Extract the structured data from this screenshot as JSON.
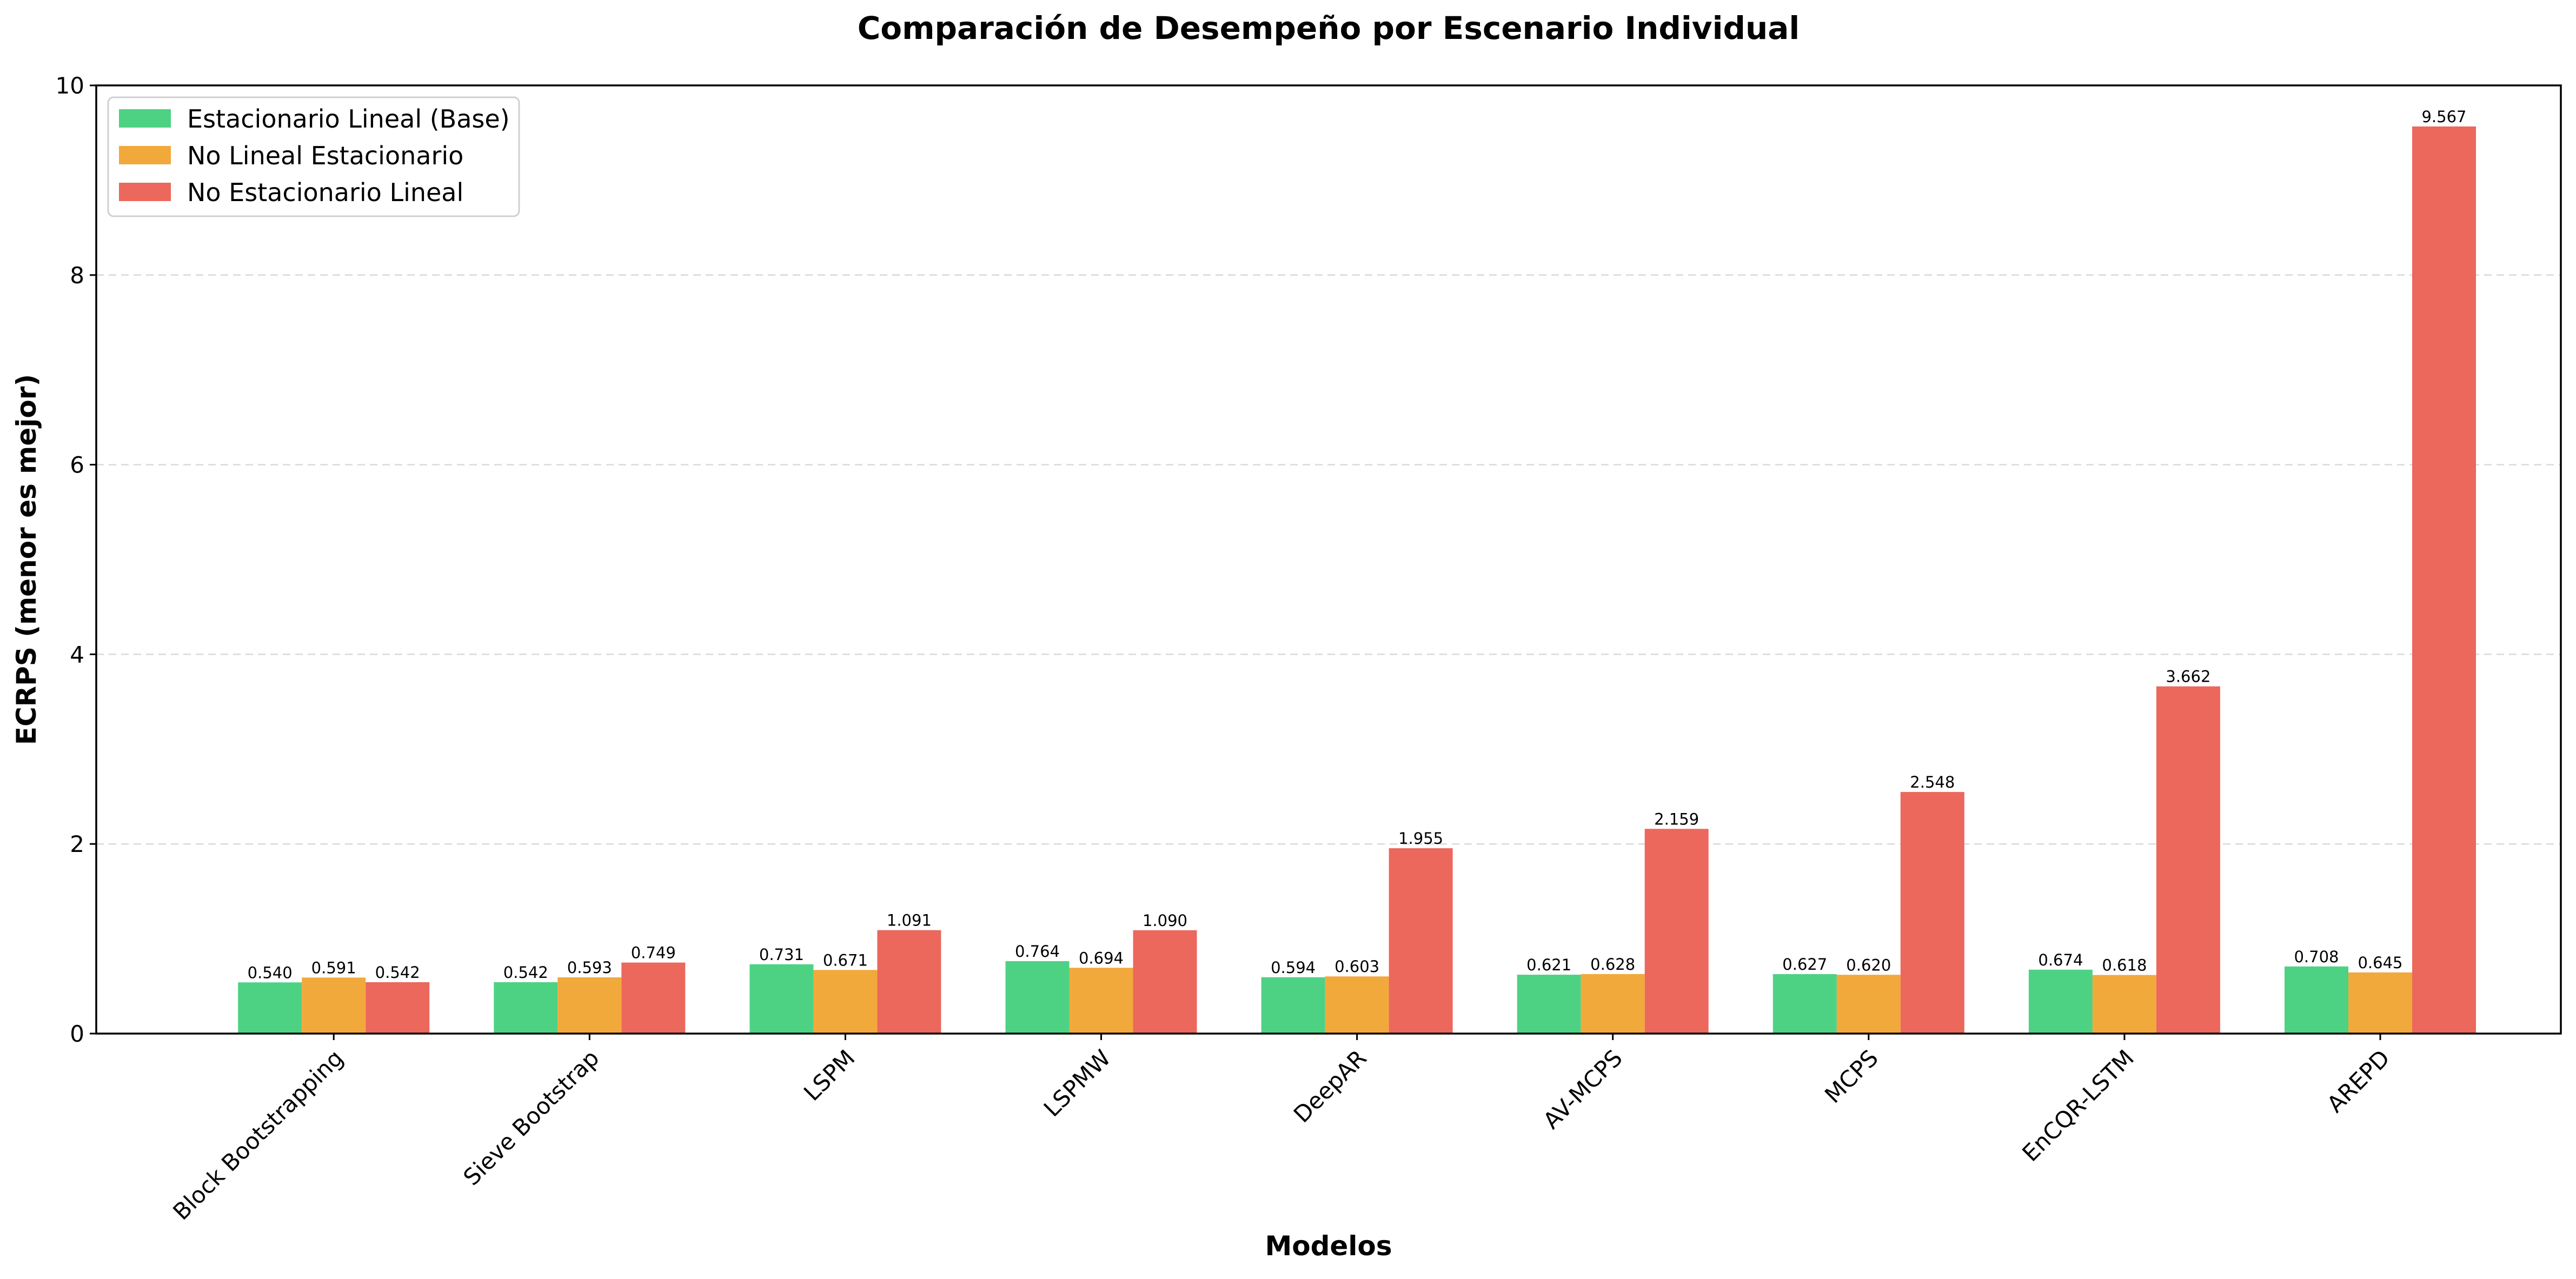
{
  "chart_data": {
    "type": "bar",
    "title": "Comparación de Desempeño por Escenario Individual",
    "xlabel": "Modelos",
    "ylabel": "ECRPS (menor es mejor)",
    "ylim": [
      0,
      10
    ],
    "yticks": [
      0,
      2,
      4,
      6,
      8,
      10
    ],
    "grid": "y-dashed",
    "legend_position": "top-left",
    "categories": [
      "Block Bootstrapping",
      "Sieve Bootstrap",
      "LSPM",
      "LSPMW",
      "DeepAR",
      "AV-MCPS",
      "MCPS",
      "EnCQR-LSTM",
      "AREPD"
    ],
    "series": [
      {
        "name": "Estacionario Lineal (Base)",
        "color": "#4dd284",
        "values": [
          0.54,
          0.542,
          0.731,
          0.764,
          0.594,
          0.621,
          0.627,
          0.674,
          0.708
        ],
        "labels": [
          "0.540",
          "0.542",
          "0.731",
          "0.764",
          "0.594",
          "0.621",
          "0.627",
          "0.674",
          "0.708"
        ]
      },
      {
        "name": "No Lineal Estacionario",
        "color": "#f2a93b",
        "values": [
          0.591,
          0.593,
          0.671,
          0.694,
          0.603,
          0.628,
          0.62,
          0.618,
          0.645
        ],
        "labels": [
          "0.591",
          "0.593",
          "0.671",
          "0.694",
          "0.603",
          "0.628",
          "0.620",
          "0.618",
          "0.645"
        ]
      },
      {
        "name": "No Estacionario Lineal",
        "color": "#ec675c",
        "values": [
          0.542,
          0.749,
          1.091,
          1.09,
          1.955,
          2.159,
          2.548,
          3.662,
          9.567
        ],
        "labels": [
          "0.542",
          "0.749",
          "1.091",
          "1.090",
          "1.955",
          "2.159",
          "2.548",
          "3.662",
          "9.567"
        ]
      }
    ]
  }
}
